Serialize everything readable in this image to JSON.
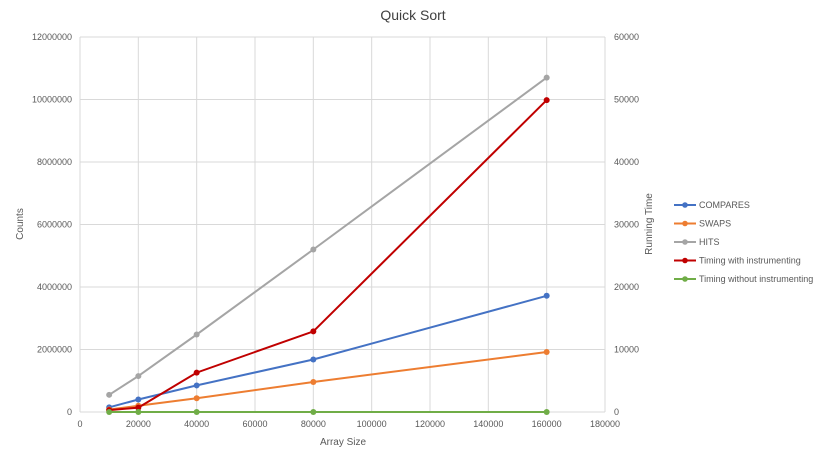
{
  "chart_data": {
    "type": "scatter",
    "title": "Quick Sort",
    "xlabel": "Array Size",
    "ylabel": "Counts",
    "y2label": "Running Time",
    "xlim": [
      0,
      180000
    ],
    "ylim": [
      0,
      12000000
    ],
    "y2lim": [
      0,
      60000
    ],
    "x_ticks": [
      "0",
      "20000",
      "40000",
      "60000",
      "80000",
      "100000",
      "120000",
      "140000",
      "160000",
      "180000"
    ],
    "y_ticks": [
      "0",
      "2000000",
      "4000000",
      "6000000",
      "8000000",
      "10000000",
      "12000000"
    ],
    "y2_ticks": [
      "0",
      "10000",
      "20000",
      "30000",
      "40000",
      "50000",
      "60000"
    ],
    "grid": true,
    "legend_position": "right",
    "x": [
      10000,
      20000,
      40000,
      80000,
      160000
    ],
    "series": [
      {
        "name": "COMPARES",
        "axis": "left",
        "color": "#4472C4",
        "values": [
          150000,
          400000,
          850000,
          1680000,
          3720000
        ]
      },
      {
        "name": "SWAPS",
        "axis": "left",
        "color": "#ED7D31",
        "values": [
          80000,
          200000,
          440000,
          960000,
          1920000
        ]
      },
      {
        "name": "HITS",
        "axis": "left",
        "color": "#A5A5A5",
        "values": [
          550000,
          1150000,
          2480000,
          5200000,
          10700000
        ]
      },
      {
        "name": "Timing with instrumenting",
        "axis": "right",
        "color": "#C00000",
        "values": [
          300,
          700,
          6300,
          12900,
          49900
        ]
      },
      {
        "name": "Timing without instrumenting",
        "axis": "right",
        "color": "#70AD47",
        "values": [
          0,
          0,
          0,
          0,
          0
        ]
      }
    ]
  }
}
